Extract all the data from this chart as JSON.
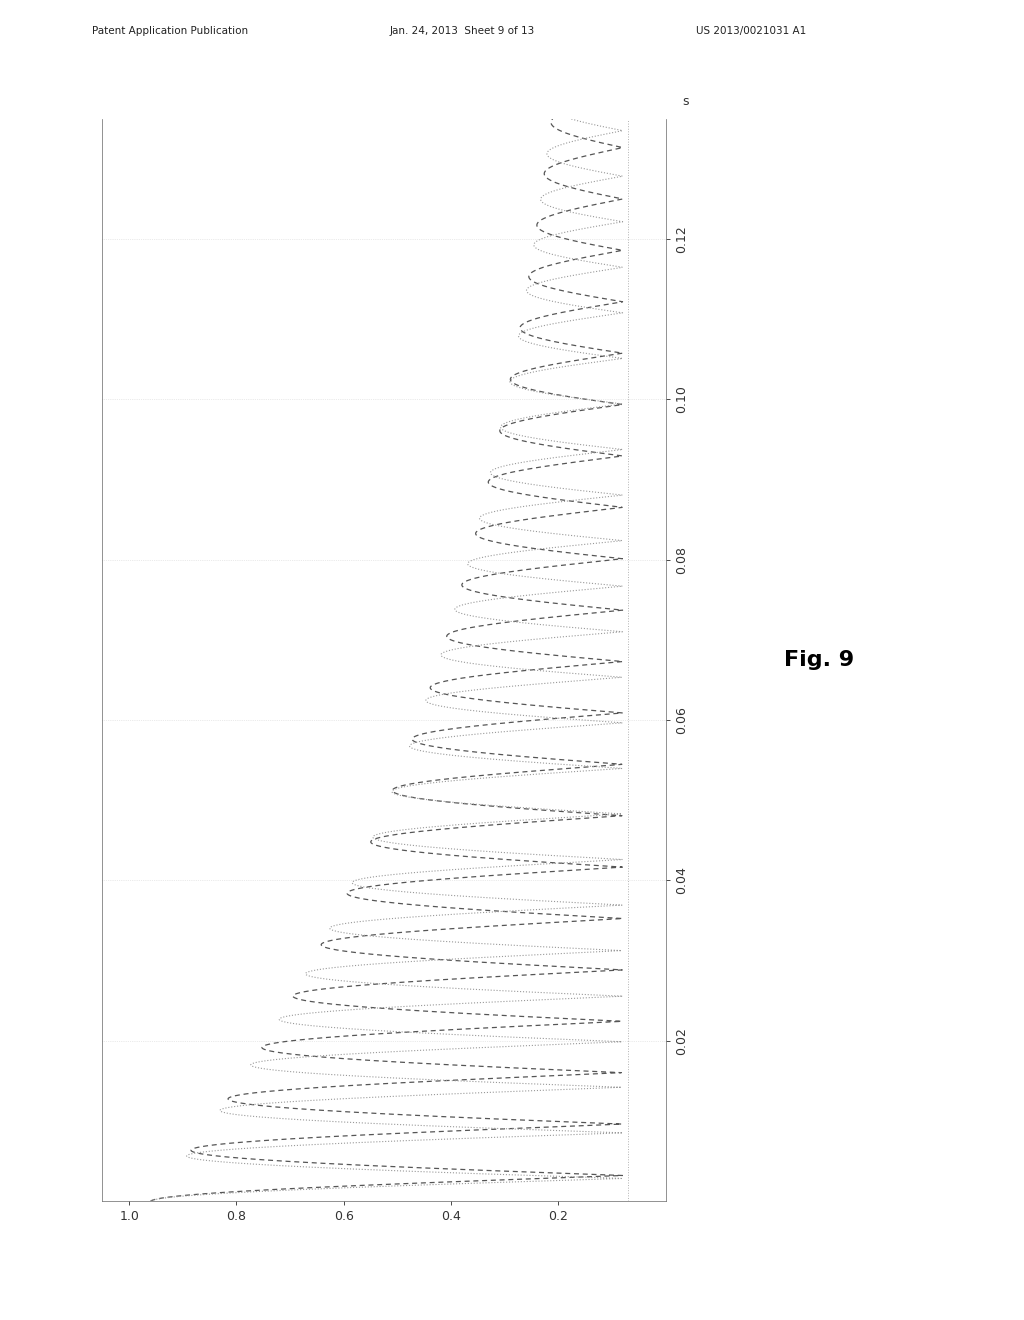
{
  "header_left": "Patent Application Publication",
  "header_mid": "Jan. 24, 2013  Sheet 9 of 13",
  "header_right": "US 2013/0021031 A1",
  "fig_label": "Fig. 9",
  "x_axis_label": "s",
  "x_ticks": [
    0.02,
    0.04,
    0.06,
    0.08,
    0.1,
    0.12
  ],
  "y_ticks": [
    0.2,
    0.4,
    0.6,
    0.8,
    1.0
  ],
  "x_range": [
    0.0,
    0.135
  ],
  "y_range": [
    0.0,
    1.05
  ],
  "background_color": "#ffffff",
  "signal_color1": "#555555",
  "signal_color2": "#999999",
  "freq1": 78.0,
  "freq2": 88.0,
  "decay_rate": 14.0,
  "amplitude": 0.88,
  "baseline_y": 0.08
}
